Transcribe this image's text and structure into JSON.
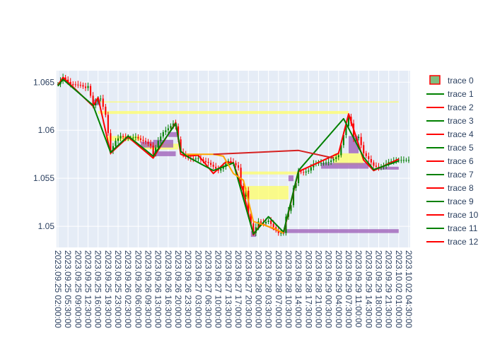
{
  "chart_data": {
    "type": "candlestick",
    "ylim": [
      1.0478,
      1.0662
    ],
    "y_ticks": [
      {
        "value": 1.05,
        "label": "1.05"
      },
      {
        "value": 1.055,
        "label": "1.055"
      },
      {
        "value": 1.06,
        "label": "1.06"
      },
      {
        "value": 1.065,
        "label": "1.065"
      }
    ],
    "x_tick_labels": [
      "2023.09.25 02:00:00",
      "2023.09.25 05:30:00",
      "2023.09.25 09:00:00",
      "2023.09.25 12:30:00",
      "2023.09.25 16:00:00",
      "2023.09.25 19:30:00",
      "2023.09.25 23:00:00",
      "2023.09.26 02:30:00",
      "2023.09.26 06:00:00",
      "2023.09.26 09:30:00",
      "2023.09.26 13:00:00",
      "2023.09.26 16:30:00",
      "2023.09.26 20:00:00",
      "2023.09.26 23:30:00",
      "2023.09.27 03:00:00",
      "2023.09.27 06:30:00",
      "2023.09.27 10:00:00",
      "2023.09.27 13:30:00",
      "2023.09.27 17:00:00",
      "2023.09.27 20:30:00",
      "2023.09.28 00:00:00",
      "2023.09.28 03:30:00",
      "2023.09.28 07:00:00",
      "2023.09.28 10:30:00",
      "2023.09.28 14:00:00",
      "2023.09.28 17:30:00",
      "2023.09.28 21:00:00",
      "2023.09.29 00:30:00",
      "2023.09.29 04:00:00",
      "2023.09.29 07:30:00",
      "2023.09.29 11:00:00",
      "2023.09.29 14:30:00",
      "2023.09.29 18:00:00",
      "2023.09.29 21:30:00",
      "2023.10.02 01:00:00",
      "2023.10.02 04:30:00"
    ],
    "close_path": [
      [
        0,
        1.0648
      ],
      [
        2,
        1.0655
      ],
      [
        5,
        1.0648
      ],
      [
        9,
        1.0647
      ],
      [
        11,
        1.0644
      ],
      [
        12,
        1.0646
      ],
      [
        13,
        1.0636
      ],
      [
        14,
        1.0626
      ],
      [
        16,
        1.0633
      ],
      [
        17,
        1.0633
      ],
      [
        19,
        1.0616
      ],
      [
        21,
        1.0578
      ],
      [
        23,
        1.0589
      ],
      [
        25,
        1.0594
      ],
      [
        27,
        1.0592
      ],
      [
        29,
        1.0592
      ],
      [
        31,
        1.0593
      ],
      [
        33,
        1.059
      ],
      [
        35,
        1.0588
      ],
      [
        37,
        1.0584
      ],
      [
        38,
        1.0575
      ],
      [
        40,
        1.0589
      ],
      [
        42,
        1.0598
      ],
      [
        44,
        1.0602
      ],
      [
        46,
        1.0607
      ],
      [
        47,
        1.0604
      ],
      [
        49,
        1.0577
      ],
      [
        51,
        1.0573
      ],
      [
        52,
        1.0571
      ],
      [
        54,
        1.057
      ],
      [
        56,
        1.0571
      ],
      [
        58,
        1.0568
      ],
      [
        60,
        1.0566
      ],
      [
        62,
        1.0562
      ],
      [
        64,
        1.0558
      ],
      [
        66,
        1.0562
      ],
      [
        68,
        1.0568
      ],
      [
        70,
        1.0566
      ],
      [
        72,
        1.0561
      ],
      [
        73,
        1.0542
      ],
      [
        74,
        1.0531
      ],
      [
        75,
        1.0537
      ],
      [
        76,
        1.0513
      ],
      [
        77,
        1.0503
      ],
      [
        78,
        1.0493
      ],
      [
        79,
        1.0499
      ],
      [
        80,
        1.0505
      ],
      [
        82,
        1.0503
      ],
      [
        84,
        1.0506
      ],
      [
        86,
        1.0499
      ],
      [
        88,
        1.0493
      ],
      [
        90,
        1.0493
      ],
      [
        91,
        1.051
      ],
      [
        93,
        1.0522
      ],
      [
        94,
        1.054
      ],
      [
        95,
        1.0545
      ],
      [
        96,
        1.0557
      ],
      [
        98,
        1.0556
      ],
      [
        100,
        1.0558
      ],
      [
        102,
        1.0565
      ],
      [
        104,
        1.0566
      ],
      [
        106,
        1.0566
      ],
      [
        108,
        1.0567
      ],
      [
        110,
        1.057
      ],
      [
        112,
        1.0574
      ],
      [
        114,
        1.0595
      ],
      [
        116,
        1.0614
      ],
      [
        117,
        1.0607
      ],
      [
        118,
        1.0591
      ],
      [
        120,
        1.0593
      ],
      [
        122,
        1.0576
      ],
      [
        124,
        1.057
      ],
      [
        126,
        1.0563
      ],
      [
        128,
        1.0561
      ],
      [
        130,
        1.0563
      ],
      [
        132,
        1.0567
      ],
      [
        134,
        1.0568
      ],
      [
        136,
        1.0569
      ]
    ],
    "zigzag_lines": [
      {
        "color": "#ff0000",
        "points": [
          [
            0,
            1.0647
          ],
          [
            2,
            1.0655
          ],
          [
            14,
            1.0625
          ],
          [
            16,
            1.0634
          ],
          [
            21,
            1.0576
          ],
          [
            28,
            1.0593
          ],
          [
            38,
            1.0571
          ],
          [
            47,
            1.0608
          ],
          [
            49,
            1.0575
          ],
          [
            51,
            1.0573
          ],
          [
            56,
            1.0574
          ],
          [
            62,
            1.0555
          ],
          [
            67,
            1.0567
          ],
          [
            70,
            1.0566
          ],
          [
            74,
            1.0536
          ],
          [
            78,
            1.0491
          ],
          [
            81,
            1.0503
          ],
          [
            90,
            1.0493
          ],
          [
            93,
            1.0525
          ],
          [
            96,
            1.0557
          ],
          [
            112,
            1.0576
          ],
          [
            116,
            1.0617
          ],
          [
            122,
            1.0569
          ],
          [
            126,
            1.0558
          ],
          [
            136,
            1.057
          ]
        ]
      },
      {
        "color": "#008000",
        "points": [
          [
            0,
            1.0646
          ],
          [
            2,
            1.0653
          ],
          [
            14,
            1.0626
          ],
          [
            21,
            1.0577
          ],
          [
            28,
            1.0594
          ],
          [
            38,
            1.0573
          ],
          [
            47,
            1.0607
          ],
          [
            49,
            1.0578
          ],
          [
            52,
            1.0572
          ],
          [
            62,
            1.0558
          ],
          [
            70,
            1.0566
          ],
          [
            78,
            1.0492
          ],
          [
            84,
            1.051
          ],
          [
            90,
            1.0494
          ],
          [
            96,
            1.0558
          ],
          [
            114,
            1.0612
          ],
          [
            122,
            1.0572
          ],
          [
            126,
            1.0559
          ],
          [
            136,
            1.0568
          ]
        ]
      },
      {
        "color": "#ffa500",
        "points": [
          [
            51,
            1.0575
          ],
          [
            62,
            1.0575
          ],
          [
            66,
            1.0573
          ],
          [
            70,
            1.0555
          ],
          [
            74,
            1.0548
          ],
          [
            78,
            1.0505
          ],
          [
            86,
            1.0498
          ],
          [
            90,
            1.0493
          ]
        ]
      },
      {
        "color": "#d62020",
        "points": [
          [
            62,
            1.0575
          ],
          [
            96,
            1.0579
          ],
          [
            110,
            1.0571
          ]
        ]
      }
    ],
    "zones": [
      {
        "color": "#ffff66",
        "x": [
          16,
          116
        ],
        "y": [
          1.0617,
          1.062
        ]
      },
      {
        "color": "#ffff66",
        "x": [
          16,
          136
        ],
        "y": [
          1.0629,
          1.063
        ]
      },
      {
        "color": "#ffff66",
        "x": [
          19,
          33
        ],
        "y": [
          1.0589,
          1.0594
        ]
      },
      {
        "color": "#ffff66",
        "x": [
          33,
          48
        ],
        "y": [
          1.058,
          1.0586
        ]
      },
      {
        "color": "#ffff66",
        "x": [
          72,
          96
        ],
        "y": [
          1.0554,
          1.0557
        ]
      },
      {
        "color": "#ffff66",
        "x": [
          74,
          92
        ],
        "y": [
          1.0528,
          1.0542
        ]
      },
      {
        "color": "#ffff66",
        "x": [
          110,
          122
        ],
        "y": [
          1.0564,
          1.0576
        ]
      },
      {
        "color": "#9b59b6",
        "x": [
          14,
          17
        ],
        "y": [
          1.0626,
          1.0632
        ]
      },
      {
        "color": "#9b59b6",
        "x": [
          33,
          38
        ],
        "y": [
          1.0582,
          1.0588
        ]
      },
      {
        "color": "#9b59b6",
        "x": [
          38,
          46
        ],
        "y": [
          1.0582,
          1.059
        ]
      },
      {
        "color": "#9b59b6",
        "x": [
          38,
          47
        ],
        "y": [
          1.0573,
          1.0578
        ]
      },
      {
        "color": "#9b59b6",
        "x": [
          44,
          48
        ],
        "y": [
          1.0593,
          1.0598
        ]
      },
      {
        "color": "#9b59b6",
        "x": [
          77,
          79
        ],
        "y": [
          1.0489,
          1.0495
        ]
      },
      {
        "color": "#9b59b6",
        "x": [
          90,
          136
        ],
        "y": [
          1.0493,
          1.0497
        ]
      },
      {
        "color": "#9b59b6",
        "x": [
          92,
          94
        ],
        "y": [
          1.0547,
          1.0553
        ]
      },
      {
        "color": "#9b59b6",
        "x": [
          105,
          124
        ],
        "y": [
          1.056,
          1.0566
        ]
      },
      {
        "color": "#9b59b6",
        "x": [
          116,
          120
        ],
        "y": [
          1.0576,
          1.0594
        ]
      },
      {
        "color": "#9b59b6",
        "x": [
          128,
          136
        ],
        "y": [
          1.0559,
          1.0562
        ]
      }
    ],
    "legend": [
      {
        "label": "trace 0",
        "kind": "box"
      },
      {
        "label": "trace 1",
        "kind": "line",
        "color": "#008000"
      },
      {
        "label": "trace 2",
        "kind": "line",
        "color": "#ff0000"
      },
      {
        "label": "trace 3",
        "kind": "line",
        "color": "#008000"
      },
      {
        "label": "trace 4",
        "kind": "line",
        "color": "#ff0000"
      },
      {
        "label": "trace 5",
        "kind": "line",
        "color": "#008000"
      },
      {
        "label": "trace 6",
        "kind": "line",
        "color": "#ff0000"
      },
      {
        "label": "trace 7",
        "kind": "line",
        "color": "#008000"
      },
      {
        "label": "trace 8",
        "kind": "line",
        "color": "#ff0000"
      },
      {
        "label": "trace 9",
        "kind": "line",
        "color": "#008000"
      },
      {
        "label": "trace 10",
        "kind": "line",
        "color": "#ff0000"
      },
      {
        "label": "trace 11",
        "kind": "line",
        "color": "#008000"
      },
      {
        "label": "trace 12",
        "kind": "line",
        "color": "#ff0000"
      }
    ],
    "legend_placement": "right",
    "grid": true,
    "colors": {
      "plot_bg": "#e5ecf6",
      "grid": "#ffffff",
      "increasing": "#008000",
      "decreasing": "#ff0000",
      "text": "#2a3f5f"
    }
  }
}
